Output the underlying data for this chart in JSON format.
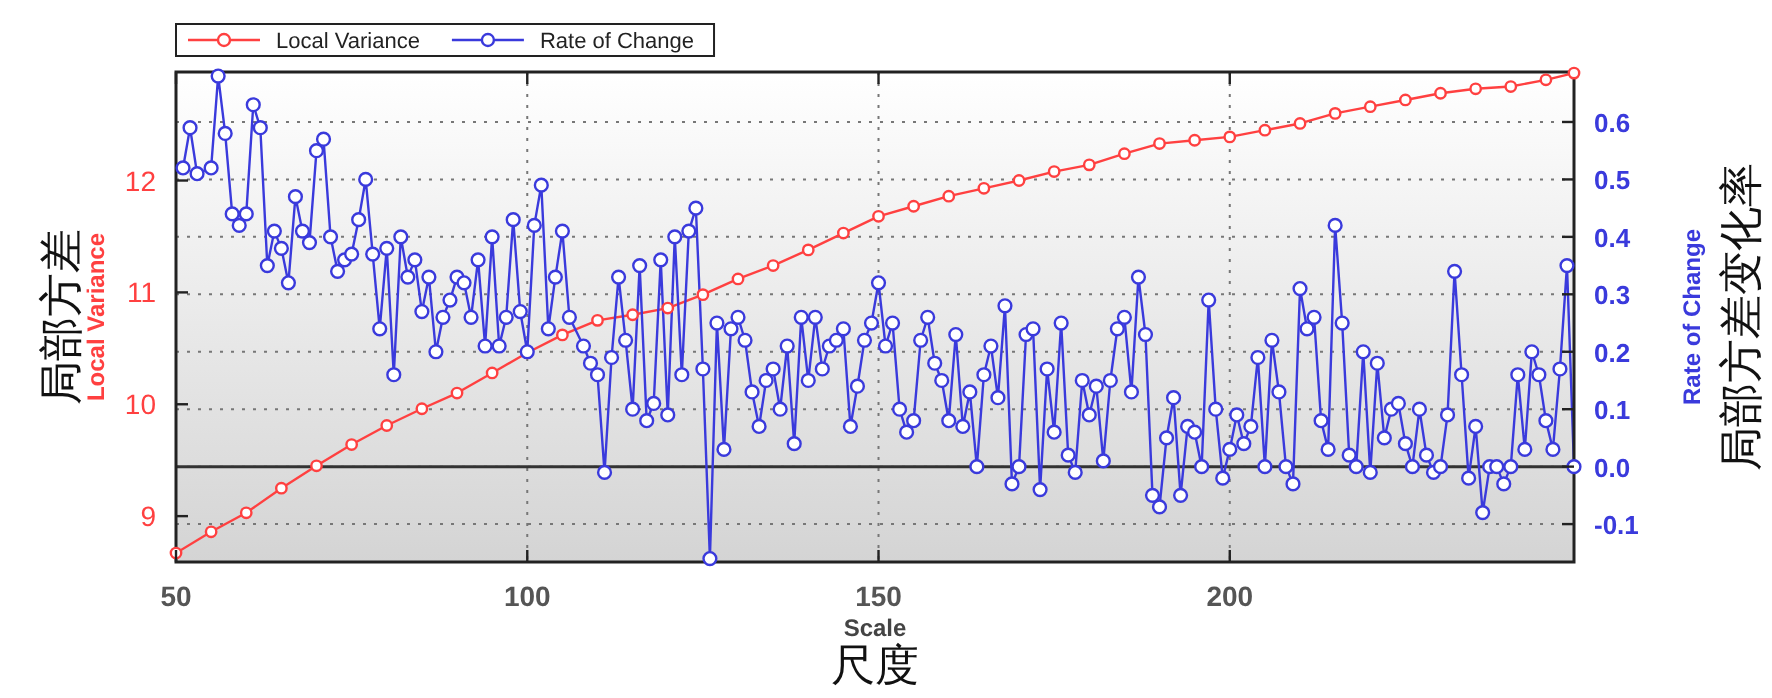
{
  "chart_data": {
    "type": "line",
    "xlabel": "Scale\n尺度",
    "ylabel": "Local Variance\n局部方差",
    "y2label": "Rate of Change\n局部方差变化率",
    "xlim": [
      50,
      249
    ],
    "xticks": [
      50,
      100,
      150,
      200
    ],
    "ylim": [
      8.59,
      12.97
    ],
    "yticks": [
      9,
      10,
      11,
      12
    ],
    "y2lim": [
      -0.166,
      0.687
    ],
    "y2ticks": [
      {
        "value": -0.1,
        "label": "-0.1"
      },
      {
        "value": 0,
        "label": "0.0"
      },
      0.1,
      0.2,
      0.3,
      0.4,
      0.5,
      0.6
    ],
    "grid": true,
    "legend": "top left",
    "marker": "circle",
    "line_style": "solid",
    "ref_lines": [
      {
        "axis": "y2",
        "value": 0,
        "color": "#333333"
      }
    ],
    "series": [
      {
        "name": "Local Variance",
        "color": "#ff4040",
        "x": [
          50,
          55,
          60,
          65,
          70,
          75,
          80,
          85,
          90,
          95,
          100,
          105,
          110,
          115,
          120,
          125,
          130,
          135,
          140,
          145,
          150,
          155,
          160,
          165,
          170,
          175,
          180,
          185,
          190,
          195,
          200,
          205,
          210,
          215,
          220,
          225,
          230,
          235,
          240,
          245,
          249
        ],
        "values": [
          8.67,
          8.86,
          9.03,
          9.25,
          9.45,
          9.64,
          9.81,
          9.96,
          10.1,
          10.28,
          10.46,
          10.62,
          10.75,
          10.8,
          10.86,
          10.98,
          11.12,
          11.24,
          11.38,
          11.53,
          11.68,
          11.77,
          11.86,
          11.93,
          12.0,
          12.08,
          12.14,
          12.24,
          12.33,
          12.36,
          12.39,
          12.45,
          12.51,
          12.6,
          12.66,
          12.72,
          12.78,
          12.82,
          12.84,
          12.9,
          12.96
        ]
      },
      {
        "name": "Rate of Change",
        "color": "#3a3adc",
        "axis": "y2",
        "x": [
          51,
          52,
          53,
          55,
          56,
          57,
          58,
          59,
          60,
          61,
          62,
          63,
          64,
          65,
          66,
          67,
          68,
          69,
          70,
          71,
          72,
          73,
          74,
          75,
          76,
          77,
          78,
          79,
          80,
          81,
          82,
          83,
          84,
          85,
          86,
          87,
          88,
          89,
          90,
          91,
          92,
          93,
          94,
          95,
          96,
          97,
          98,
          99,
          100,
          101,
          102,
          103,
          104,
          105,
          106,
          108,
          109,
          110,
          111,
          112,
          113,
          114,
          115,
          116,
          117,
          118,
          119,
          120,
          121,
          122,
          123,
          124,
          125,
          126,
          127,
          128,
          129,
          130,
          131,
          132,
          133,
          134,
          135,
          136,
          137,
          138,
          139,
          140,
          141,
          142,
          143,
          144,
          145,
          146,
          147,
          148,
          149,
          150,
          151,
          152,
          153,
          154,
          155,
          156,
          157,
          158,
          159,
          160,
          161,
          162,
          163,
          164,
          165,
          166,
          167,
          168,
          169,
          170,
          171,
          172,
          173,
          174,
          175,
          176,
          177,
          178,
          179,
          180,
          181,
          182,
          183,
          184,
          185,
          186,
          187,
          188,
          189,
          190,
          191,
          192,
          193,
          194,
          195,
          196,
          197,
          198,
          199,
          200,
          201,
          202,
          203,
          204,
          205,
          206,
          207,
          208,
          209,
          210,
          211,
          212,
          213,
          214,
          215,
          216,
          217,
          218,
          219,
          220,
          221,
          222,
          223,
          224,
          225,
          226,
          227,
          228,
          229,
          230,
          231,
          232,
          233,
          234,
          235,
          236,
          237,
          238,
          239,
          240,
          241,
          242,
          243,
          244,
          245,
          246,
          247,
          248,
          249
        ],
        "values": [
          0.52,
          0.59,
          0.51,
          0.52,
          0.68,
          0.58,
          0.44,
          0.42,
          0.44,
          0.63,
          0.59,
          0.35,
          0.41,
          0.38,
          0.32,
          0.47,
          0.41,
          0.39,
          0.55,
          0.57,
          0.4,
          0.34,
          0.36,
          0.37,
          0.43,
          0.5,
          0.37,
          0.24,
          0.38,
          0.16,
          0.4,
          0.33,
          0.36,
          0.27,
          0.33,
          0.2,
          0.26,
          0.29,
          0.33,
          0.32,
          0.26,
          0.36,
          0.21,
          0.4,
          0.21,
          0.26,
          0.43,
          0.27,
          0.2,
          0.42,
          0.49,
          0.24,
          0.33,
          0.41,
          0.26,
          0.21,
          0.18,
          0.16,
          -0.01,
          0.19,
          0.33,
          0.22,
          0.1,
          0.35,
          0.08,
          0.11,
          0.36,
          0.09,
          0.4,
          0.16,
          0.41,
          0.45,
          0.17,
          -0.16,
          0.25,
          0.03,
          0.24,
          0.26,
          0.22,
          0.13,
          0.07,
          0.15,
          0.17,
          0.1,
          0.21,
          0.04,
          0.26,
          0.15,
          0.26,
          0.17,
          0.21,
          0.22,
          0.24,
          0.07,
          0.14,
          0.22,
          0.25,
          0.32,
          0.21,
          0.25,
          0.1,
          0.06,
          0.08,
          0.22,
          0.26,
          0.18,
          0.15,
          0.08,
          0.23,
          0.07,
          0.13,
          0.0,
          0.16,
          0.21,
          0.12,
          0.28,
          -0.03,
          0.0,
          0.23,
          0.24,
          -0.04,
          0.17,
          0.06,
          0.25,
          0.02,
          -0.01,
          0.15,
          0.09,
          0.14,
          0.01,
          0.15,
          0.24,
          0.26,
          0.13,
          0.33,
          0.23,
          -0.05,
          -0.07,
          0.05,
          0.12,
          -0.05,
          0.07,
          0.06,
          0.0,
          0.29,
          0.1,
          -0.02,
          0.03,
          0.09,
          0.04,
          0.07,
          0.19,
          0.0,
          0.22,
          0.13,
          0.0,
          -0.03,
          0.31,
          0.24,
          0.26,
          0.08,
          0.03,
          0.42,
          0.25,
          0.02,
          0.0,
          0.2,
          -0.01,
          0.18,
          0.05,
          0.1,
          0.11,
          0.04,
          0.0,
          0.1,
          0.02,
          -0.01,
          0.0,
          0.09,
          0.34,
          0.16,
          -0.02,
          0.07,
          -0.08,
          0.0,
          0.0,
          -0.03,
          0.0,
          0.16,
          0.03,
          0.2,
          0.16,
          0.08,
          0.03,
          0.17,
          0.35,
          0.0
        ]
      }
    ]
  }
}
